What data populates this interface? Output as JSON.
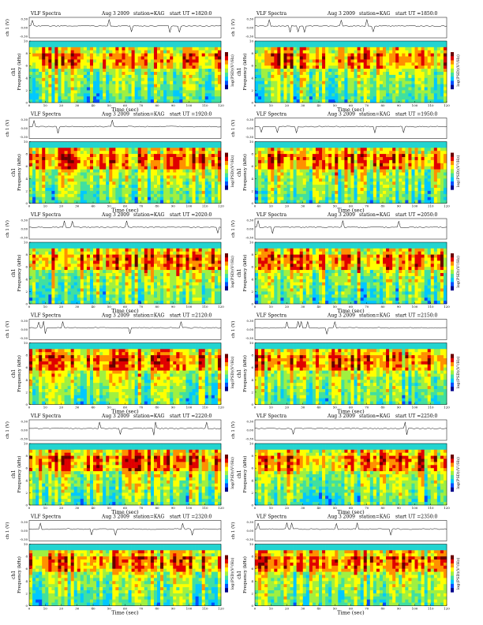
{
  "figure": {
    "title_prefix": "VLF Spectra",
    "date": "Aug 3 2009",
    "station": "station=KAG",
    "ut_prefix": "start UT =",
    "ch_label": "ch 1 (V)",
    "ch_ticks": [
      "0.30",
      "0.00",
      "-0.30"
    ],
    "freq_label": "Frequency (kHz)",
    "freq_sub_label": "ch1",
    "cbar_label": "log(PSD)(V²/Hz)",
    "time_label": "Time (sec)",
    "x_ticks": [
      "0",
      "10",
      "20",
      "30",
      "40",
      "50",
      "60",
      "70",
      "80",
      "90",
      "100",
      "110",
      "120"
    ],
    "y_ticks": [
      "0",
      "2",
      "4",
      "6",
      "8",
      "10"
    ]
  },
  "colors": {
    "colormap": [
      "#00008c",
      "#0050ff",
      "#00c8ff",
      "#40e0a0",
      "#a0f040",
      "#ffff00",
      "#ff9000",
      "#e00000",
      "#6a0000"
    ],
    "band_top": "#22d4d0"
  },
  "chart_data": [
    {
      "type": "heatmap",
      "start_ut": "1820:0",
      "xlim": [
        0,
        120
      ],
      "ylim": [
        0,
        10
      ],
      "xlabel": "Time (sec)",
      "ylabel": "Frequency (kHz)"
    },
    {
      "type": "heatmap",
      "start_ut": "1850:0",
      "xlim": [
        0,
        120
      ],
      "ylim": [
        0,
        10
      ],
      "xlabel": "Time (sec)",
      "ylabel": "Frequency (kHz)"
    },
    {
      "type": "heatmap",
      "start_ut": "1920:0",
      "xlim": [
        0,
        120
      ],
      "ylim": [
        0,
        10
      ],
      "xlabel": "Time (sec)",
      "ylabel": "Frequency (kHz)"
    },
    {
      "type": "heatmap",
      "start_ut": "1950:0",
      "xlim": [
        0,
        120
      ],
      "ylim": [
        0,
        10
      ],
      "xlabel": "Time (sec)",
      "ylabel": "Frequency (kHz)"
    },
    {
      "type": "heatmap",
      "start_ut": "2020:0",
      "xlim": [
        0,
        120
      ],
      "ylim": [
        0,
        10
      ],
      "xlabel": "Time (sec)",
      "ylabel": "Frequency (kHz)"
    },
    {
      "type": "heatmap",
      "start_ut": "2050:0",
      "xlim": [
        0,
        120
      ],
      "ylim": [
        0,
        10
      ],
      "xlabel": "Time (sec)",
      "ylabel": "Frequency (kHz)"
    },
    {
      "type": "heatmap",
      "start_ut": "2120:0",
      "xlim": [
        0,
        120
      ],
      "ylim": [
        0,
        10
      ],
      "xlabel": "Time (sec)",
      "ylabel": "Frequency (kHz)"
    },
    {
      "type": "heatmap",
      "start_ut": "2150:0",
      "xlim": [
        0,
        120
      ],
      "ylim": [
        0,
        10
      ],
      "xlabel": "Time (sec)",
      "ylabel": "Frequency (kHz)"
    },
    {
      "type": "heatmap",
      "start_ut": "2220:0",
      "xlim": [
        0,
        120
      ],
      "ylim": [
        0,
        10
      ],
      "xlabel": "Time (sec)",
      "ylabel": "Frequency (kHz)"
    },
    {
      "type": "heatmap",
      "start_ut": "2250:0",
      "xlim": [
        0,
        120
      ],
      "ylim": [
        0,
        10
      ],
      "xlabel": "Time (sec)",
      "ylabel": "Frequency (kHz)"
    },
    {
      "type": "heatmap",
      "start_ut": "2320:0",
      "xlim": [
        0,
        120
      ],
      "ylim": [
        0,
        10
      ],
      "xlabel": "Time (sec)",
      "ylabel": "Frequency (kHz)"
    },
    {
      "type": "heatmap",
      "start_ut": "2350:0",
      "xlim": [
        0,
        120
      ],
      "ylim": [
        0,
        10
      ],
      "xlabel": "Time (sec)",
      "ylabel": "Frequency (kHz)"
    }
  ]
}
